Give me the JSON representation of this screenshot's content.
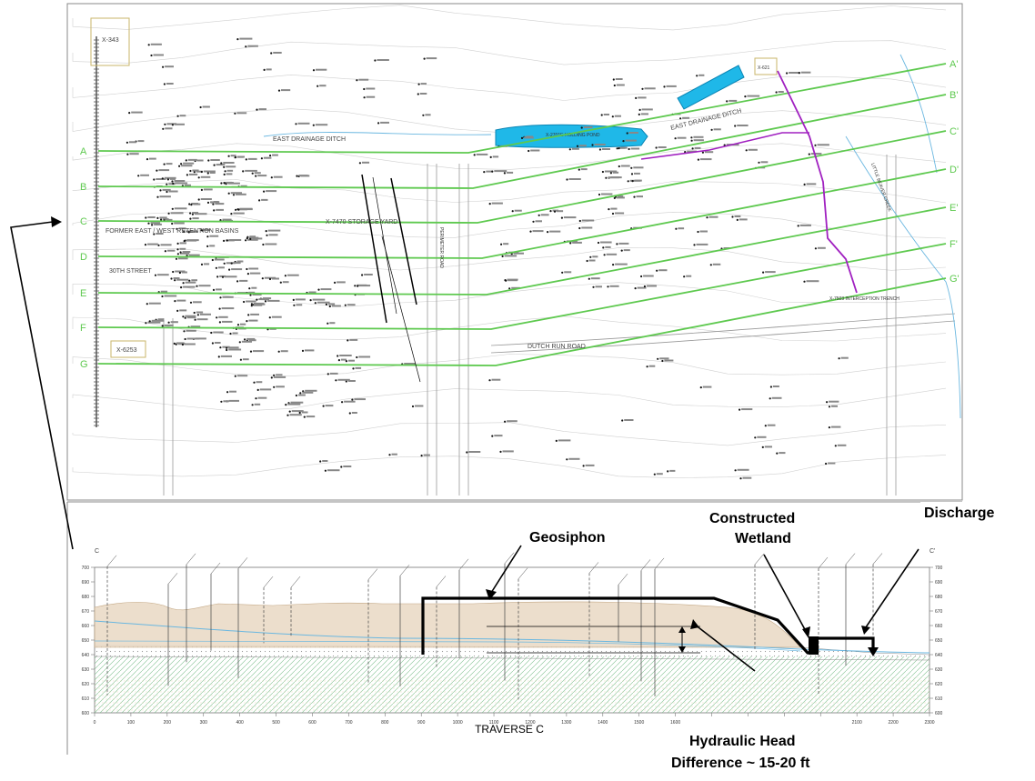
{
  "map": {
    "traverse_lines": [
      {
        "start": "A",
        "end": "A'"
      },
      {
        "start": "B",
        "end": "B'"
      },
      {
        "start": "C",
        "end": "C'"
      },
      {
        "start": "D",
        "end": "D'"
      },
      {
        "start": "E",
        "end": "E'"
      },
      {
        "start": "F",
        "end": "F'"
      },
      {
        "start": "G",
        "end": "G'"
      }
    ],
    "labels": {
      "east_drainage_ditch": "EAST DRAINAGE DITCH",
      "east_drainage_ditch_2": "EAST DRAINAGE DITCH",
      "former_basins": "FORMER EAST / WEST RETENTION BASINS",
      "street": "30TH STREET",
      "storage_yard": "X-7470 STORAGE YARD",
      "dutch_run_road": "DUTCH RUN ROAD",
      "interception_trench": "X-7503 INTERCEPTION TRENCH",
      "holding_pond": "X-2701E HOLDING POND",
      "little_beaver": "LITTLE BEAVER CREEK",
      "building_1": "X-343",
      "building_2": "X-6253",
      "building_3": "X-621",
      "perimeter_road": "PERIMETER ROAD"
    },
    "colors": {
      "traverse_line": "#5ec94f",
      "water_feature": "#1fb8e8",
      "geosiphon_line": "#a020c0"
    }
  },
  "cross_section": {
    "start_label": "C",
    "end_label": "C'",
    "title": "TRAVERSE C",
    "x_ticks": [
      "0",
      "100",
      "200",
      "300",
      "400",
      "500",
      "600",
      "700",
      "800",
      "900",
      "1000",
      "1100",
      "1200",
      "1300",
      "1400",
      "1500",
      "1600",
      "1700",
      "1800",
      "1900",
      "2000",
      "2100",
      "2200",
      "2300"
    ],
    "y_ticks": [
      "700",
      "690",
      "680",
      "670",
      "660",
      "650",
      "640",
      "630",
      "620",
      "610",
      "600"
    ],
    "colors": {
      "soil_fill": "#e9d9c4",
      "gravel": "#b8c7bc",
      "bedrock_hatch": "#7fbf8f",
      "water_table": "#6ab7e0"
    }
  },
  "annotations": {
    "geosiphon": "Geosiphon",
    "constructed_wetland": "Constructed\nWetland",
    "constructed_wetland_line1": "Constructed",
    "constructed_wetland_line2": "Wetland",
    "discharge": "Discharge",
    "hydraulic_head_line1": "Hydraulic Head",
    "hydraulic_head_line2": "Difference ~ 15-20 ft"
  }
}
